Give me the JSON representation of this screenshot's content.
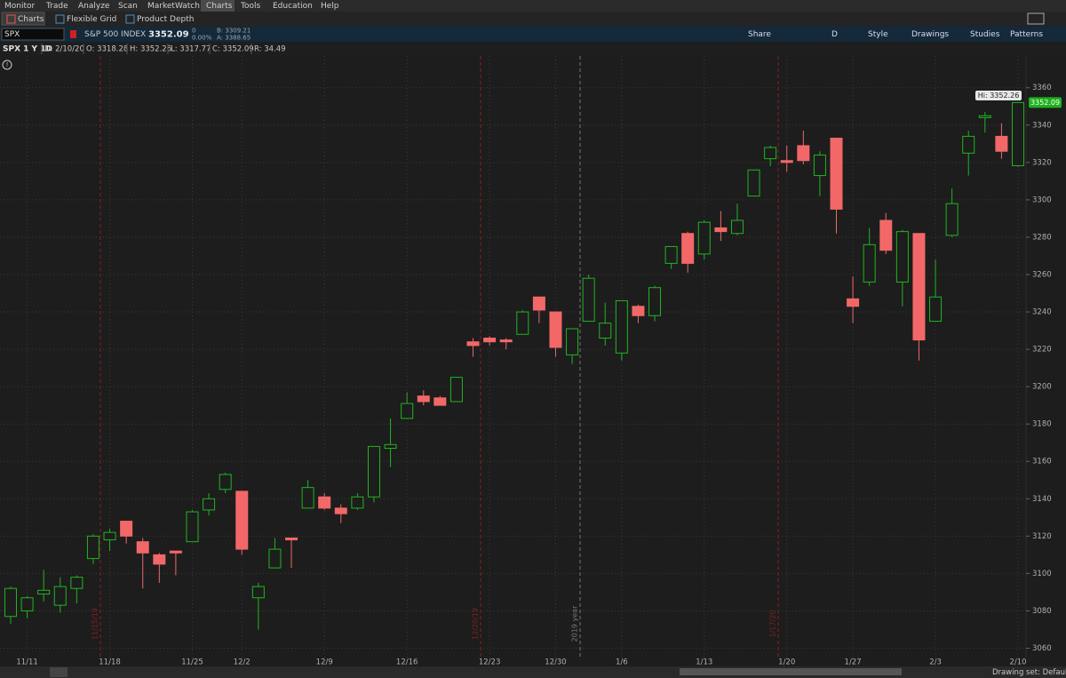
{
  "menu": [
    "Monitor",
    "Trade",
    "Analyze",
    "Scan",
    "MarketWatch",
    "Charts",
    "Tools",
    "Education",
    "Help"
  ],
  "tabs": [
    "Charts",
    "Flexible Grid",
    "Product Depth"
  ],
  "symbol_bar": {
    "symbol": "SPX",
    "description": "S&P 500 INDEX",
    "last": "3352.09",
    "change": "0",
    "change_pct": "0.00%",
    "bid": "B: 3309.21",
    "ask": "A: 3388.65",
    "buttons": [
      "Share",
      "D",
      "Style",
      "Drawings",
      "Studies",
      "Patterns"
    ]
  },
  "chart_header": {
    "title": "SPX 1 Y 1D",
    "fields": [
      "D: 2/10/20",
      "O: 3318.28",
      "H: 3352.26",
      "L: 3317.77",
      "C: 3352.09",
      "R: 34.49"
    ]
  },
  "chart_data": {
    "type": "candlestick",
    "categories": [
      null,
      "11/11",
      null,
      null,
      null,
      null,
      "11/18",
      null,
      null,
      null,
      null,
      "11/25",
      null,
      null,
      "12/2",
      null,
      null,
      null,
      null,
      "12/9",
      null,
      null,
      null,
      null,
      "12/16",
      null,
      null,
      null,
      null,
      "12/23",
      null,
      null,
      null,
      "12/30",
      null,
      null,
      null,
      "1/6",
      null,
      null,
      null,
      null,
      "1/13",
      null,
      null,
      null,
      null,
      "1/20",
      null,
      null,
      null,
      "1/27",
      null,
      null,
      null,
      null,
      "2/3",
      null,
      null,
      null,
      null,
      "2/10"
    ],
    "open": [
      3077,
      3080,
      3089,
      3083,
      3092,
      3108,
      3118,
      3128,
      3117,
      3110,
      3112,
      3117,
      3134,
      3145,
      3144,
      3087,
      3103,
      3119,
      3135,
      3141,
      3135,
      3135,
      3141,
      3167,
      3183,
      3195,
      3194,
      3192,
      3224,
      3226,
      3225,
      3228,
      3248,
      3240,
      3217,
      3235,
      3226,
      3218,
      3243,
      3238,
      3266,
      3282,
      3271,
      3285,
      3282,
      3302,
      3322,
      3321,
      3329,
      3313,
      3333,
      3247,
      3256,
      3289,
      3256,
      3282,
      3235,
      3281,
      3325,
      3344,
      3334,
      3318.28
    ],
    "high": [
      3093,
      3088,
      3102,
      3098,
      3099,
      3121,
      3124,
      3128,
      3119,
      3111,
      3112,
      3134,
      3143,
      3154,
      3144,
      3095,
      3119,
      3119,
      3150,
      3143,
      3137,
      3143,
      3168,
      3183,
      3197,
      3198,
      3195,
      3205,
      3226,
      3227,
      3226,
      3241,
      3248,
      3240,
      3231,
      3260,
      3245,
      3246,
      3244,
      3254,
      3275,
      3283,
      3289,
      3294,
      3298,
      3316,
      3329,
      3329,
      3337,
      3326,
      3333,
      3259,
      3285,
      3293,
      3284,
      3282,
      3268,
      3306,
      3337,
      3347,
      3341,
      3352.26
    ],
    "low": [
      3073,
      3076,
      3085,
      3079,
      3084,
      3105,
      3112,
      3116,
      3092,
      3095,
      3099,
      3117,
      3131,
      3143,
      3110,
      3070,
      3103,
      3103,
      3135,
      3134,
      3127,
      3134,
      3138,
      3157,
      3183,
      3190,
      3190,
      3192,
      3216,
      3222,
      3220,
      3228,
      3234,
      3216,
      3212,
      3235,
      3222,
      3214,
      3234,
      3235,
      3263,
      3261,
      3268,
      3278,
      3281,
      3302,
      3318,
      3315,
      3319,
      3302,
      3282,
      3234,
      3254,
      3271,
      3243,
      3214,
      3235,
      3280,
      3313,
      3336,
      3322,
      3317.77
    ],
    "close": [
      3092,
      3087,
      3091,
      3093,
      3098,
      3120,
      3122,
      3120,
      3111,
      3105,
      3111,
      3133,
      3140,
      3153,
      3113,
      3093,
      3113,
      3118,
      3146,
      3135,
      3132,
      3141,
      3168,
      3169,
      3191,
      3192,
      3190,
      3205,
      3222,
      3224,
      3224,
      3240,
      3241,
      3221,
      3231,
      3258,
      3234,
      3246,
      3238,
      3253,
      3275,
      3266,
      3288,
      3283,
      3289,
      3316,
      3328,
      3320,
      3321,
      3324,
      3295,
      3243,
      3276,
      3273,
      3283,
      3225,
      3248,
      3298,
      3334,
      3345,
      3326,
      3352.09
    ],
    "up_color": "#1fb51f",
    "down_color": "#f26868",
    "ylim": [
      3055,
      3377
    ],
    "yticks": [
      3060,
      3080,
      3100,
      3120,
      3140,
      3160,
      3180,
      3200,
      3220,
      3240,
      3260,
      3280,
      3300,
      3320,
      3340,
      3360
    ],
    "grid": true,
    "event_lines": [
      "11/15/19",
      "12/20/19",
      "2019 year",
      "1/17/20"
    ],
    "hi_label": "Hi: 3352.26",
    "last_label": "3352.09"
  },
  "status": "Drawing set: Default"
}
